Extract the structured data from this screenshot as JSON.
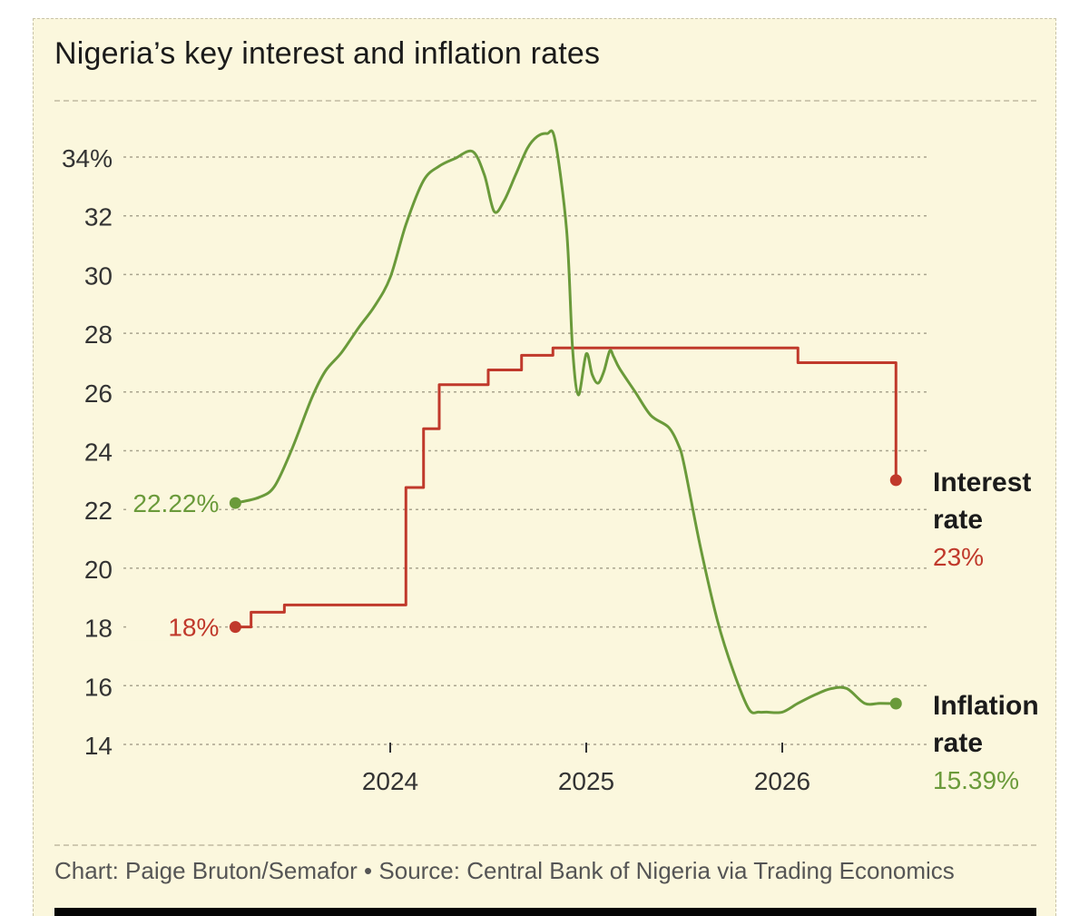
{
  "colors": {
    "background": "#fbf7dd",
    "inflation": "#6a9a3a",
    "interest": "#c0392b",
    "text": "#1b1b1b",
    "source_text": "#555555"
  },
  "chart_data": {
    "type": "line",
    "title": "Nigeria’s key interest and inflation rates",
    "xlabel": "",
    "ylabel": "",
    "ylim": [
      14,
      34
    ],
    "y_ticks": [
      {
        "value": 34,
        "label": "34%"
      },
      {
        "value": 32,
        "label": "32"
      },
      {
        "value": 30,
        "label": "30"
      },
      {
        "value": 28,
        "label": "28"
      },
      {
        "value": 26,
        "label": "26"
      },
      {
        "value": 24,
        "label": "24"
      },
      {
        "value": 22,
        "label": "22"
      },
      {
        "value": 20,
        "label": "20"
      },
      {
        "value": 18,
        "label": "18"
      },
      {
        "value": 16,
        "label": "16"
      },
      {
        "value": 14,
        "label": "14"
      }
    ],
    "x_ticks": [
      {
        "value": 2024.0,
        "label": "2024"
      },
      {
        "value": 2025.0,
        "label": "2025"
      },
      {
        "value": 2026.0,
        "label": "2026"
      }
    ],
    "grid": true,
    "series": [
      {
        "key": "inflation",
        "name_lines": [
          "Inflation",
          "rate"
        ],
        "end_label": "15.39%",
        "start_label": "22.22%",
        "x": [
          2023.21,
          2023.33,
          2023.41,
          2023.5,
          2023.6,
          2023.67,
          2023.75,
          2023.84,
          2023.92,
          2024.0,
          2024.08,
          2024.17,
          2024.25,
          2024.33,
          2024.42,
          2024.48,
          2024.53,
          2024.58,
          2024.64,
          2024.7,
          2024.75,
          2024.8,
          2024.84,
          2024.9,
          2024.93,
          2024.96,
          2025.0,
          2025.03,
          2025.06,
          2025.09,
          2025.12,
          2025.14,
          2025.17,
          2025.25,
          2025.33,
          2025.42,
          2025.47,
          2025.5,
          2025.58,
          2025.67,
          2025.75,
          2025.83,
          2025.88,
          2025.92,
          2026.0,
          2026.08,
          2026.17,
          2026.25,
          2026.33,
          2026.42,
          2026.5,
          2026.58
        ],
        "y": [
          22.22,
          22.41,
          22.79,
          24.08,
          25.8,
          26.72,
          27.33,
          28.2,
          28.92,
          29.9,
          31.7,
          33.2,
          33.69,
          33.95,
          34.19,
          33.4,
          32.15,
          32.5,
          33.4,
          34.3,
          34.7,
          34.8,
          34.6,
          31.5,
          27.5,
          25.9,
          27.3,
          26.6,
          26.3,
          26.7,
          27.4,
          27.2,
          26.8,
          26.0,
          25.2,
          24.8,
          24.2,
          23.5,
          20.8,
          18.2,
          16.5,
          15.2,
          15.1,
          15.1,
          15.1,
          15.4,
          15.7,
          15.9,
          15.9,
          15.4,
          15.4,
          15.39
        ],
        "color": "#6a9a3a"
      },
      {
        "key": "interest",
        "name_lines": [
          "Interest",
          "rate"
        ],
        "end_label": "23%",
        "start_label": "18%",
        "step": true,
        "x": [
          2023.21,
          2023.29,
          2023.46,
          2024.08,
          2024.17,
          2024.25,
          2024.5,
          2024.67,
          2024.83,
          2025.67,
          2026.08,
          2026.58,
          2026.58
        ],
        "y": [
          18.0,
          18.5,
          18.75,
          22.75,
          24.75,
          26.25,
          26.75,
          27.25,
          27.5,
          27.5,
          27.0,
          26.5,
          23.0
        ],
        "color": "#c0392b"
      }
    ]
  },
  "source": "Chart: Paige Bruton/Semafor • Source: Central Bank of Nigeria via Trading Economics"
}
